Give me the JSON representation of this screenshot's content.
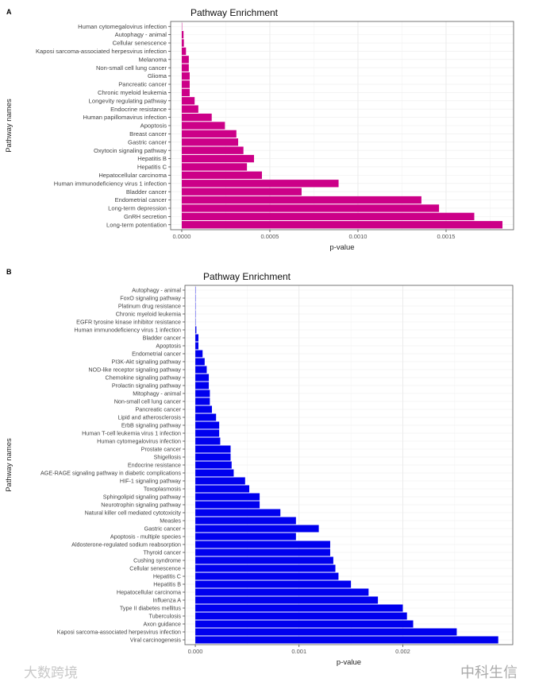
{
  "chart_data": [
    {
      "panel_label": "A",
      "type": "bar",
      "orientation": "horizontal",
      "title": "Pathway Enrichment",
      "xlabel": "p-value",
      "ylabel": "Pathway names",
      "xlim": [
        -6.3e-05,
        0.001883
      ],
      "xticks": [
        0,
        0.0005,
        0.001,
        0.0015
      ],
      "xtick_labels": [
        "0.0000",
        "0.0005",
        "0.0010",
        "0.0015"
      ],
      "grid": true,
      "color": "#cc0088",
      "categories": [
        "Human cytomegalovirus infection",
        "Autophagy - animal",
        "Cellular senescence",
        "Kaposi sarcoma-associated herpesvirus infection",
        "Melanoma",
        "Non-small cell lung cancer",
        "Glioma",
        "Pancreatic cancer",
        "Chronic myeloid leukemia",
        "Longevity regulating pathway",
        "Endocrine resistance",
        "Human papillomavirus infection",
        "Apoptosis",
        "Breast cancer",
        "Gastric cancer",
        "Oxytocin signaling pathway",
        "Hepatitis B",
        "Hepatitis C",
        "Hepatocellular carcinoma",
        "Human immunodeficiency virus 1 infection",
        "Bladder cancer",
        "Endometrial cancer",
        "Long-term depression",
        "GnRH secretion",
        "Long-term potentiation"
      ],
      "values": [
        1e-06,
        1e-05,
        1.2e-05,
        2.4e-05,
        4e-05,
        4e-05,
        4.5e-05,
        4.5e-05,
        4.5e-05,
        7.3e-05,
        9.4e-05,
        0.00017,
        0.000245,
        0.00031,
        0.00032,
        0.00035,
        0.00041,
        0.00037,
        0.000455,
        0.00089,
        0.00068,
        0.00136,
        0.00146,
        0.00166,
        0.00182
      ]
    },
    {
      "panel_label": "B",
      "type": "bar",
      "orientation": "horizontal",
      "title": "Pathway Enrichment",
      "xlabel": "p-value",
      "ylabel": "Pathway names",
      "xlim": [
        -0.0001,
        0.00306
      ],
      "xticks": [
        0,
        0.001,
        0.002
      ],
      "xtick_labels": [
        "0.000",
        "0.001",
        "0.002"
      ],
      "grid": true,
      "color": "#0000ee",
      "categories": [
        "Autophagy - animal",
        "FoxO signaling pathway",
        "Platinum drug resistance",
        "Chronic myeloid leukemia",
        "EGFR tyrosine kinase inhibitor resistance",
        "Human immunodeficiency virus 1 infection",
        "Bladder cancer",
        "Apoptosis",
        "Endometrial cancer",
        "PI3K-Akt signaling pathway",
        "NOD-like receptor signaling pathway",
        "Chemokine signaling pathway",
        "Prolactin signaling pathway",
        "Mitophagy - animal",
        "Non-small cell lung cancer",
        "Pancreatic cancer",
        "Lipid and atherosclerosis",
        "ErbB signaling pathway",
        "Human T-cell leukemia virus 1 infection",
        "Human cytomegalovirus infection",
        "Prostate cancer",
        "Shigellosis",
        "Endocrine resistance",
        "AGE-RAGE signaling pathway in diabetic complications",
        "HIF-1 signaling pathway",
        "Toxoplasmosis",
        "Sphingolipid signaling pathway",
        "Neurotrophin signaling pathway",
        "Natural killer cell mediated cytotoxicity",
        "Measles",
        "Gastric cancer",
        "Apoptosis - multiple species",
        "Aldosterone-regulated sodium reabsorption",
        "Thyroid cancer",
        "Cushing syndrome",
        "Cellular senescence",
        "Hepatitis C",
        "Hepatitis B",
        "Hepatocellular carcinoma",
        "Influenza A",
        "Type II diabetes mellitus",
        "Tuberculosis",
        "Axon guidance",
        "Kaposi sarcoma-associated herpesvirus infection",
        "Viral carcinogenesis"
      ],
      "values": [
        5e-07,
        1e-06,
        2e-06,
        2e-06,
        3e-06,
        1e-05,
        3e-05,
        3e-05,
        7e-05,
        9e-05,
        0.00011,
        0.00013,
        0.00013,
        0.00014,
        0.00014,
        0.00016,
        0.0002,
        0.00023,
        0.00023,
        0.00024,
        0.00034,
        0.00034,
        0.00035,
        0.00037,
        0.00048,
        0.00052,
        0.00062,
        0.00062,
        0.00082,
        0.00097,
        0.00119,
        0.00097,
        0.0013,
        0.0013,
        0.00133,
        0.00135,
        0.00138,
        0.0015,
        0.00167,
        0.00176,
        0.002,
        0.00204,
        0.0021,
        0.00252,
        0.00292
      ]
    }
  ],
  "watermarks": [
    "大数跨境",
    "中科生信"
  ]
}
